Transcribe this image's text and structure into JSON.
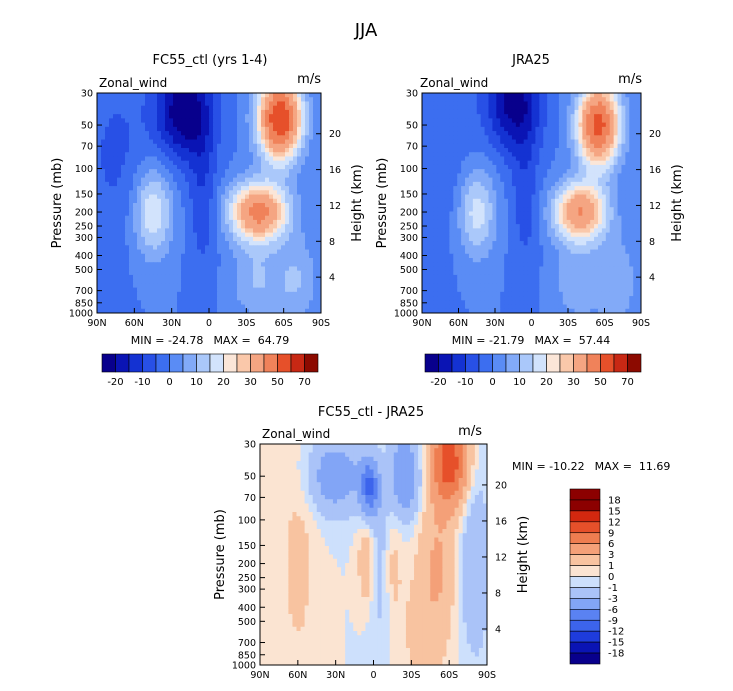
{
  "figure": {
    "title": "JJA"
  },
  "colors": {
    "main_levels": [
      "#08008c",
      "#0a14b4",
      "#1432d2",
      "#2850e6",
      "#3c6ef0",
      "#5a8cf5",
      "#82aaf8",
      "#aac8fa",
      "#d2e3fc",
      "#fbe6d8",
      "#fac8aa",
      "#f5a582",
      "#f0825a",
      "#e6502a",
      "#c82814",
      "#8c0a00"
    ],
    "diff_levels": [
      "#08008c",
      "#0a14b4",
      "#1e3cdc",
      "#3c64ec",
      "#5a82f2",
      "#82a5f6",
      "#aac3f8",
      "#cde0fc",
      "#fbe4d2",
      "#f8c3a0",
      "#f4a078",
      "#ee7d50",
      "#e6502a",
      "#d2280f",
      "#8c0000"
    ]
  },
  "chart_data": [
    {
      "id": "ctl",
      "type": "heatmap",
      "title": "FC55_ctl (yrs 1-4)",
      "variable": "Zonal_wind",
      "units": "m/s",
      "xlabel": "",
      "ylabel": "Pressure (mb)",
      "ylabel_right": "Height (km)",
      "x_ticks": [
        "90N",
        "60N",
        "30N",
        "0",
        "30S",
        "60S",
        "90S"
      ],
      "x_range": [
        90,
        -90
      ],
      "y_ticks": [
        30,
        50,
        70,
        100,
        150,
        200,
        250,
        300,
        400,
        500,
        700,
        850,
        1000
      ],
      "y_range": [
        1000,
        30
      ],
      "y_scale": "log",
      "height_ticks": [
        4,
        8,
        12,
        16,
        20
      ],
      "min_label": "MIN = -24.78",
      "max_label": "MAX =  64.79",
      "min": -24.78,
      "max": 64.79,
      "colorbar_labels": [
        "-20",
        "-10",
        "0",
        "10",
        "20",
        "30",
        "50",
        "70"
      ],
      "features": [
        {
          "lat": -40,
          "p": 200,
          "value": 44,
          "sx": 16,
          "sy": 0.32
        },
        {
          "lat": -57,
          "p": 45,
          "value": 60,
          "sx": 12,
          "sy": 0.45
        },
        {
          "lat": -38,
          "p": 600,
          "value": 10,
          "sx": 14,
          "sy": 0.45
        },
        {
          "lat": -70,
          "p": 600,
          "value": 10,
          "sx": 12,
          "sy": 0.5
        },
        {
          "lat": 45,
          "p": 200,
          "value": 20,
          "sx": 11,
          "sy": 0.5
        },
        {
          "lat": 20,
          "p": 40,
          "value": -25,
          "sx": 16,
          "sy": 0.55
        },
        {
          "lat": 5,
          "p": 150,
          "value": -9,
          "sx": 8,
          "sy": 0.9
        },
        {
          "lat": 75,
          "p": 80,
          "value": -6,
          "sx": 18,
          "sy": 1.0
        }
      ]
    },
    {
      "id": "jra",
      "type": "heatmap",
      "title": "JRA25",
      "variable": "Zonal_wind",
      "units": "m/s",
      "xlabel": "",
      "ylabel": "Pressure (mb)",
      "ylabel_right": "Height (km)",
      "x_ticks": [
        "90N",
        "60N",
        "30N",
        "0",
        "30S",
        "60S",
        "90S"
      ],
      "x_range": [
        90,
        -90
      ],
      "y_ticks": [
        30,
        50,
        70,
        100,
        150,
        200,
        250,
        300,
        400,
        500,
        700,
        850,
        1000
      ],
      "y_range": [
        1000,
        30
      ],
      "y_scale": "log",
      "height_ticks": [
        4,
        8,
        12,
        16,
        20
      ],
      "min_label": "MIN = -21.79",
      "max_label": "MAX =  57.44",
      "min": -21.79,
      "max": 57.44,
      "colorbar_labels": [
        "-20",
        "-10",
        "0",
        "10",
        "20",
        "30",
        "50",
        "70"
      ],
      "features": [
        {
          "lat": -40,
          "p": 200,
          "value": 40,
          "sx": 15,
          "sy": 0.32
        },
        {
          "lat": -55,
          "p": 50,
          "value": 54,
          "sx": 12,
          "sy": 0.45
        },
        {
          "lat": -38,
          "p": 600,
          "value": 9,
          "sx": 14,
          "sy": 0.45
        },
        {
          "lat": -70,
          "p": 600,
          "value": 9,
          "sx": 12,
          "sy": 0.5
        },
        {
          "lat": 45,
          "p": 200,
          "value": 18,
          "sx": 11,
          "sy": 0.5
        },
        {
          "lat": 15,
          "p": 35,
          "value": -22,
          "sx": 16,
          "sy": 0.55
        },
        {
          "lat": 5,
          "p": 150,
          "value": -8,
          "sx": 8,
          "sy": 0.9
        },
        {
          "lat": 75,
          "p": 80,
          "value": -5,
          "sx": 18,
          "sy": 1.0
        }
      ]
    },
    {
      "id": "diff",
      "type": "heatmap",
      "title": "FC55_ctl - JRA25",
      "variable": "Zonal_wind",
      "units": "m/s",
      "xlabel": "",
      "ylabel": "Pressure (mb)",
      "ylabel_right": "Height (km)",
      "x_ticks": [
        "90N",
        "60N",
        "30N",
        "0",
        "30S",
        "60S",
        "90S"
      ],
      "x_range": [
        90,
        -90
      ],
      "y_ticks": [
        30,
        50,
        70,
        100,
        150,
        200,
        250,
        300,
        400,
        500,
        700,
        850,
        1000
      ],
      "y_range": [
        1000,
        30
      ],
      "y_scale": "log",
      "height_ticks": [
        4,
        8,
        12,
        16,
        20
      ],
      "min_label": "MIN = -10.22",
      "max_label": "MAX =  11.69",
      "min": -10.22,
      "max": 11.69,
      "colorbar_labels": [
        "18",
        "15",
        "12",
        "9",
        "6",
        "3",
        "1",
        "0",
        "-1",
        "-3",
        "-6",
        "-9",
        "-12",
        "-15",
        "-18"
      ],
      "features": [
        {
          "lat": -60,
          "p": 40,
          "value": 11,
          "sx": 10,
          "sy": 0.5
        },
        {
          "lat": -50,
          "p": 200,
          "value": 3,
          "sx": 10,
          "sy": 0.7
        },
        {
          "lat": -40,
          "p": 600,
          "value": 1.5,
          "sx": 15,
          "sy": 0.7
        },
        {
          "lat": 60,
          "p": 200,
          "value": 1.5,
          "sx": 10,
          "sy": 1.2
        },
        {
          "lat": 3,
          "p": 60,
          "value": -9,
          "sx": 5,
          "sy": 0.3
        },
        {
          "lat": -25,
          "p": 50,
          "value": -6,
          "sx": 8,
          "sy": 0.45
        },
        {
          "lat": 30,
          "p": 50,
          "value": -5,
          "sx": 15,
          "sy": 0.4
        },
        {
          "lat": -5,
          "p": 200,
          "value": -2,
          "sx": 8,
          "sy": 0.9
        },
        {
          "lat": -80,
          "p": 200,
          "value": -3,
          "sx": 8,
          "sy": 1.0
        },
        {
          "lat": 5,
          "p": 200,
          "value": 3,
          "sx": 5,
          "sy": 0.5
        },
        {
          "lat": -15,
          "p": 200,
          "value": 2,
          "sx": 5,
          "sy": 0.6
        }
      ]
    }
  ]
}
